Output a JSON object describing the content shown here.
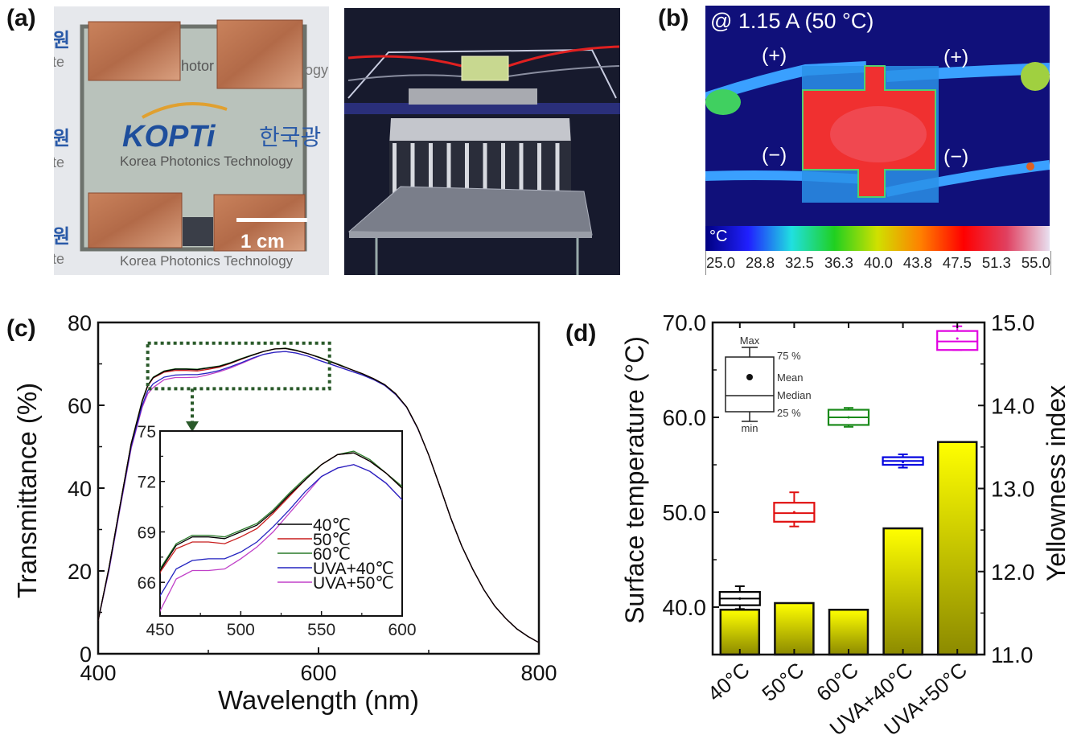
{
  "panel_labels": {
    "a": "(a)",
    "b": "(b)",
    "c": "(c)",
    "d": "(d)"
  },
  "photo_a": {
    "logo": "KOPTi",
    "logo_korean": "한국광",
    "caption": "Korea Photonics Technology",
    "caption_partial": "Korea Photonics Techn",
    "fragment_top": "hotor",
    "fragment_right": "ogy",
    "side_fragments": [
      "원",
      "te"
    ],
    "scale_bar": "1 cm"
  },
  "thermal": {
    "title": "@ 1.15 A (50 °C)",
    "labels": [
      "(+)",
      "(+)",
      "(−)",
      "(−)"
    ],
    "unit": "°C",
    "scale": [
      "25.0",
      "28.8",
      "32.5",
      "36.3",
      "40.0",
      "43.8",
      "47.5",
      "51.3",
      "55.0"
    ],
    "colormap": [
      "#000080",
      "#2020ff",
      "#20e0e0",
      "#20d020",
      "#d0e000",
      "#ff8000",
      "#ff0000",
      "#e04060",
      "#e8e0f0"
    ]
  },
  "chart_data": [
    {
      "type": "line",
      "xlabel": "Wavelength (nm)",
      "ylabel": "Transmittance (%)",
      "xlim": [
        400,
        800
      ],
      "ylim": [
        0,
        80
      ],
      "xticks": [
        400,
        600,
        800
      ],
      "yticks": [
        0,
        20,
        40,
        60,
        80
      ],
      "x": [
        400,
        410,
        420,
        430,
        440,
        445,
        450,
        460,
        470,
        480,
        490,
        500,
        510,
        520,
        530,
        540,
        550,
        560,
        570,
        580,
        590,
        600,
        610,
        620,
        630,
        640,
        650,
        660,
        670,
        680,
        690,
        700,
        710,
        720,
        730,
        740,
        750,
        760,
        770,
        780,
        790,
        800
      ],
      "series": [
        {
          "name": "40℃",
          "color": "#000000",
          "values": [
            8,
            21,
            36,
            50.7,
            61,
            64.8,
            66.7,
            68.2,
            68.7,
            68.7,
            68.6,
            69.0,
            69.4,
            70.2,
            71.2,
            72.1,
            73.0,
            73.6,
            73.7,
            73.2,
            72.5,
            71.6,
            70.6,
            69.6,
            68.6,
            67.6,
            66.4,
            65.0,
            62.8,
            59.6,
            54.5,
            48,
            40.5,
            32.8,
            26,
            20.4,
            15.5,
            11.5,
            8.5,
            6,
            4.2,
            2.7
          ]
        },
        {
          "name": "50℃",
          "color": "#c81e1e",
          "values": [
            8,
            21,
            36,
            50.7,
            61,
            64.6,
            66.6,
            68.0,
            68.4,
            68.4,
            68.3,
            68.7,
            69.2,
            70.1,
            71.1,
            72.1,
            73.0,
            73.6,
            73.7,
            73.2,
            72.5,
            71.6,
            70.6,
            69.6,
            68.6,
            67.6,
            66.4,
            65.0,
            62.8,
            59.6,
            54.5,
            48,
            40.5,
            32.8,
            26,
            20.4,
            15.5,
            11.5,
            8.5,
            6,
            4.2,
            2.7
          ]
        },
        {
          "name": "60℃",
          "color": "#2a7a2a",
          "values": [
            8,
            21,
            36,
            50.8,
            61.2,
            64.9,
            66.8,
            68.3,
            68.8,
            68.8,
            68.7,
            69.1,
            69.5,
            70.3,
            71.3,
            72.2,
            73.0,
            73.6,
            73.8,
            73.3,
            72.5,
            71.7,
            70.7,
            69.7,
            68.6,
            67.6,
            66.4,
            65.0,
            62.8,
            59.6,
            54.5,
            48,
            40.5,
            32.8,
            26,
            20.4,
            15.5,
            11.5,
            8.5,
            6,
            4.2,
            2.7
          ]
        },
        {
          "name": "UVA+40℃",
          "color": "#2424c0",
          "values": [
            8,
            20.5,
            35.5,
            50,
            60,
            63.5,
            65.2,
            66.8,
            67.3,
            67.4,
            67.4,
            67.8,
            68.4,
            69.3,
            70.3,
            71.4,
            72.3,
            72.8,
            73.0,
            72.6,
            71.9,
            70.9,
            70.0,
            69.1,
            68.2,
            67.3,
            66.2,
            64.8,
            62.6,
            59.5,
            54.4,
            48,
            40.5,
            32.8,
            26,
            20.4,
            15.5,
            11.5,
            8.5,
            6,
            4.2,
            2.7
          ]
        },
        {
          "name": "UVA+50℃",
          "color": "#c040c8",
          "values": [
            8,
            20.3,
            35.2,
            49.6,
            59.5,
            62.8,
            64.3,
            66.2,
            66.7,
            66.7,
            66.8,
            67.4,
            68.1,
            69.0,
            70.1,
            71.2,
            72.3,
            72.8,
            73.0,
            72.6,
            71.9,
            70.9,
            70.0,
            69.1,
            68.2,
            67.3,
            66.2,
            64.8,
            62.6,
            59.5,
            54.4,
            48,
            40.5,
            32.8,
            26,
            20.4,
            15.5,
            11.5,
            8.5,
            6,
            4.2,
            2.7
          ]
        }
      ],
      "highlight_box": {
        "x": [
          445,
          610
        ],
        "y": [
          64,
          75
        ],
        "color": "#2a5a2a"
      },
      "inset": {
        "xlim": [
          450,
          600
        ],
        "ylim": [
          64,
          75
        ],
        "xticks": [
          450,
          500,
          550,
          600
        ],
        "yticks": [
          66,
          69,
          72,
          75
        ],
        "legend": "lower-right"
      }
    },
    {
      "type": "bar+box",
      "categories": [
        "40°C",
        "50°C",
        "60°C",
        "UVA+40°C",
        "UVA+50°C"
      ],
      "ylabel_left": "Surface temperature (°C)",
      "ylabel_right": "Yellowness index",
      "ylim_left": [
        35,
        70
      ],
      "ylim_right": [
        11,
        15
      ],
      "yticks_left": [
        "40.0",
        "50.0",
        "60.0",
        "70.0"
      ],
      "yticks_right": [
        "11.0",
        "12.0",
        "13.0",
        "14.0",
        "15.0"
      ],
      "yellowness_index": [
        11.54,
        11.62,
        11.54,
        12.52,
        13.56
      ],
      "bar_colors": {
        "top": "#ffff00",
        "bottom": "#8c8a00"
      },
      "surface_temperature": [
        {
          "min": 39.8,
          "q1": 40.2,
          "median": 40.9,
          "mean": 40.9,
          "q3": 41.6,
          "max": 42.2,
          "color": "#000000"
        },
        {
          "min": 48.5,
          "q1": 49.0,
          "median": 49.9,
          "mean": 50.0,
          "q3": 51.0,
          "max": 52.1,
          "color": "#e01010"
        },
        {
          "min": 59.0,
          "q1": 59.2,
          "median": 60.0,
          "mean": 60.0,
          "q3": 60.8,
          "max": 61.0,
          "color": "#1a8a1a"
        },
        {
          "min": 54.7,
          "q1": 55.0,
          "median": 55.4,
          "mean": 55.3,
          "q3": 55.8,
          "max": 56.1,
          "color": "#0000e0"
        },
        {
          "min": 67.1,
          "q1": 67.1,
          "median": 68.0,
          "mean": 68.3,
          "q3": 69.1,
          "max": 69.6,
          "color": "#e000e0"
        }
      ],
      "box_legend": {
        "max": "Max",
        "q3": "75 %",
        "mean": "Mean",
        "median": "Median",
        "q1": "25 %",
        "min": "min"
      }
    }
  ]
}
